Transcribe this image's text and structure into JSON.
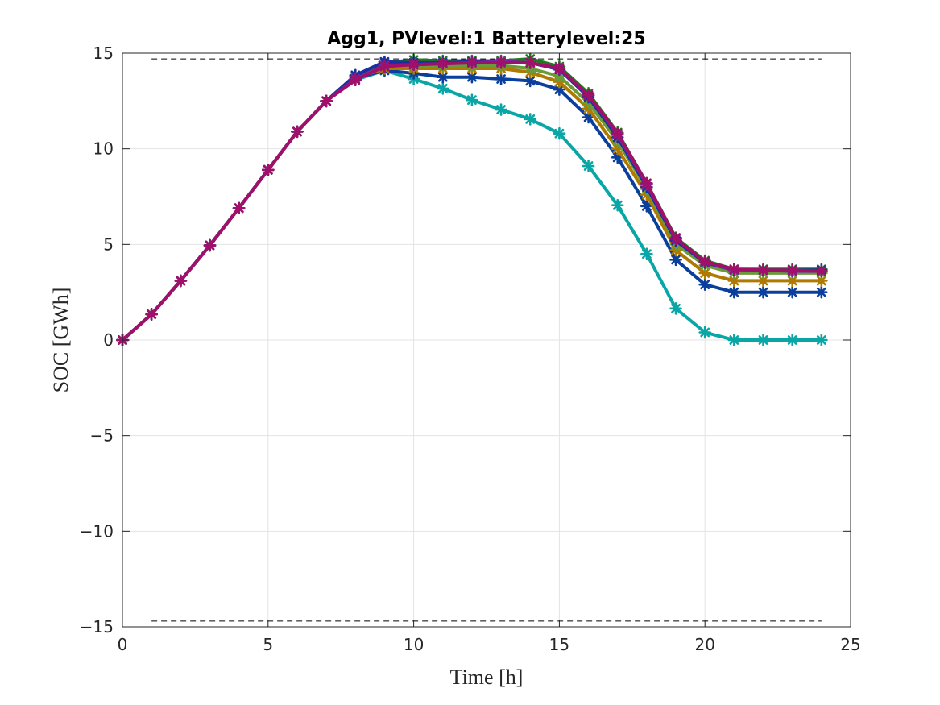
{
  "chart_data": {
    "type": "line",
    "title": "Agg1, PVlevel:1 Batterylevel:25",
    "xlabel": "Time [h]",
    "ylabel": "SOC [GWh]",
    "xlim": [
      0,
      25
    ],
    "ylim": [
      -15,
      15
    ],
    "xticks": [
      0,
      5,
      10,
      15,
      20,
      25
    ],
    "yticks": [
      -15,
      -10,
      -5,
      0,
      5,
      10,
      15
    ],
    "xtick_labels": [
      "0",
      "5",
      "10",
      "15",
      "20",
      "25"
    ],
    "ytick_labels": [
      "−15",
      "−10",
      "−5",
      "0",
      "5",
      "10",
      "15"
    ],
    "grid": true,
    "marker": "asterisk",
    "bounds": [
      {
        "x": [
          1,
          24
        ],
        "y": [
          14.7,
          14.7
        ],
        "color": "#000000",
        "style": "dashed"
      },
      {
        "x": [
          1,
          24
        ],
        "y": [
          -14.7,
          -14.7
        ],
        "color": "#000000",
        "style": "dashed"
      }
    ],
    "series": [
      {
        "color": "#0aa6a6",
        "x": [
          0,
          1,
          2,
          3,
          4,
          5,
          6,
          7,
          8,
          9,
          10,
          11,
          12,
          13,
          14,
          15,
          16,
          17,
          18,
          19,
          20,
          21,
          22,
          23,
          24
        ],
        "values": [
          0,
          1.35,
          3.1,
          4.95,
          6.9,
          8.9,
          10.9,
          12.5,
          13.6,
          14.1,
          13.65,
          13.15,
          12.55,
          12.05,
          11.55,
          10.8,
          9.1,
          7.05,
          4.5,
          1.65,
          0.4,
          0,
          0,
          0,
          0
        ]
      },
      {
        "color": "#0b3f9c",
        "x": [
          0,
          1,
          2,
          3,
          4,
          5,
          6,
          7,
          8,
          9,
          10,
          11,
          12,
          13,
          14,
          15,
          16,
          17,
          18,
          19,
          20,
          21,
          22,
          23,
          24
        ],
        "values": [
          0,
          1.35,
          3.1,
          4.95,
          6.9,
          8.9,
          10.9,
          12.5,
          13.7,
          14.1,
          13.95,
          13.75,
          13.75,
          13.65,
          13.55,
          13.1,
          11.65,
          9.55,
          7.0,
          4.2,
          2.9,
          2.5,
          2.5,
          2.5,
          2.5
        ]
      },
      {
        "color": "#b07a00",
        "x": [
          0,
          1,
          2,
          3,
          4,
          5,
          6,
          7,
          8,
          9,
          10,
          11,
          12,
          13,
          14,
          15,
          16,
          17,
          18,
          19,
          20,
          21,
          22,
          23,
          24
        ],
        "values": [
          0,
          1.35,
          3.1,
          4.95,
          6.9,
          8.9,
          10.9,
          12.5,
          13.7,
          14.2,
          14.2,
          14.2,
          14.2,
          14.2,
          14.0,
          13.5,
          12.1,
          10.0,
          7.6,
          4.7,
          3.5,
          3.1,
          3.1,
          3.1,
          3.1
        ]
      },
      {
        "color": "#6a9a3a",
        "x": [
          0,
          1,
          2,
          3,
          4,
          5,
          6,
          7,
          8,
          9,
          10,
          11,
          12,
          13,
          14,
          15,
          16,
          17,
          18,
          19,
          20,
          21,
          22,
          23,
          24
        ],
        "values": [
          0,
          1.35,
          3.1,
          4.95,
          6.9,
          8.9,
          10.9,
          12.5,
          13.75,
          14.3,
          14.35,
          14.35,
          14.35,
          14.35,
          14.2,
          13.8,
          12.4,
          10.4,
          7.9,
          5.0,
          3.9,
          3.5,
          3.5,
          3.5,
          3.5
        ]
      },
      {
        "color": "#1d7a1d",
        "x": [
          0,
          1,
          2,
          3,
          4,
          5,
          6,
          7,
          8,
          9,
          10,
          11,
          12,
          13,
          14,
          15,
          16,
          17,
          18,
          19,
          20,
          21,
          22,
          23,
          24
        ],
        "values": [
          0,
          1.35,
          3.1,
          4.95,
          6.9,
          8.9,
          10.9,
          12.5,
          13.8,
          14.5,
          14.65,
          14.6,
          14.6,
          14.6,
          14.7,
          14.3,
          12.9,
          10.85,
          8.2,
          5.35,
          4.15,
          3.7,
          3.7,
          3.7,
          3.7
        ]
      },
      {
        "color": "#1a2fa0",
        "x": [
          0,
          1,
          2,
          3,
          4,
          5,
          6,
          7,
          8,
          9,
          10,
          11,
          12,
          13,
          14,
          15,
          16,
          17,
          18,
          19,
          20,
          21,
          22,
          23,
          24
        ],
        "values": [
          0,
          1.35,
          3.1,
          4.95,
          6.9,
          8.9,
          10.9,
          12.5,
          13.85,
          14.55,
          14.5,
          14.5,
          14.55,
          14.55,
          14.5,
          14.15,
          12.7,
          10.6,
          8.0,
          5.2,
          4.05,
          3.65,
          3.65,
          3.65,
          3.65
        ]
      },
      {
        "color": "#7a2aa8",
        "x": [
          0,
          1,
          2,
          3,
          4,
          5,
          6,
          7,
          8,
          9,
          10,
          11,
          12,
          13,
          14,
          15,
          16,
          17,
          18,
          19,
          20,
          21,
          22,
          23,
          24
        ],
        "values": [
          0,
          1.35,
          3.1,
          4.95,
          6.9,
          8.9,
          10.9,
          12.5,
          13.65,
          14.35,
          14.4,
          14.45,
          14.5,
          14.55,
          14.5,
          14.2,
          12.8,
          10.75,
          8.15,
          5.3,
          4.1,
          3.65,
          3.65,
          3.6,
          3.6
        ]
      },
      {
        "color": "#a0106a",
        "x": [
          0,
          1,
          2,
          3,
          4,
          5,
          6,
          7,
          8,
          9,
          10,
          11,
          12,
          13,
          14,
          15,
          16,
          17,
          18,
          19,
          20,
          21,
          22,
          23,
          24
        ],
        "values": [
          0,
          1.35,
          3.1,
          4.95,
          6.9,
          8.9,
          10.9,
          12.5,
          13.6,
          14.3,
          14.4,
          14.45,
          14.5,
          14.5,
          14.5,
          14.2,
          12.8,
          10.8,
          8.2,
          5.3,
          4.1,
          3.7,
          3.65,
          3.65,
          3.6
        ]
      }
    ]
  }
}
